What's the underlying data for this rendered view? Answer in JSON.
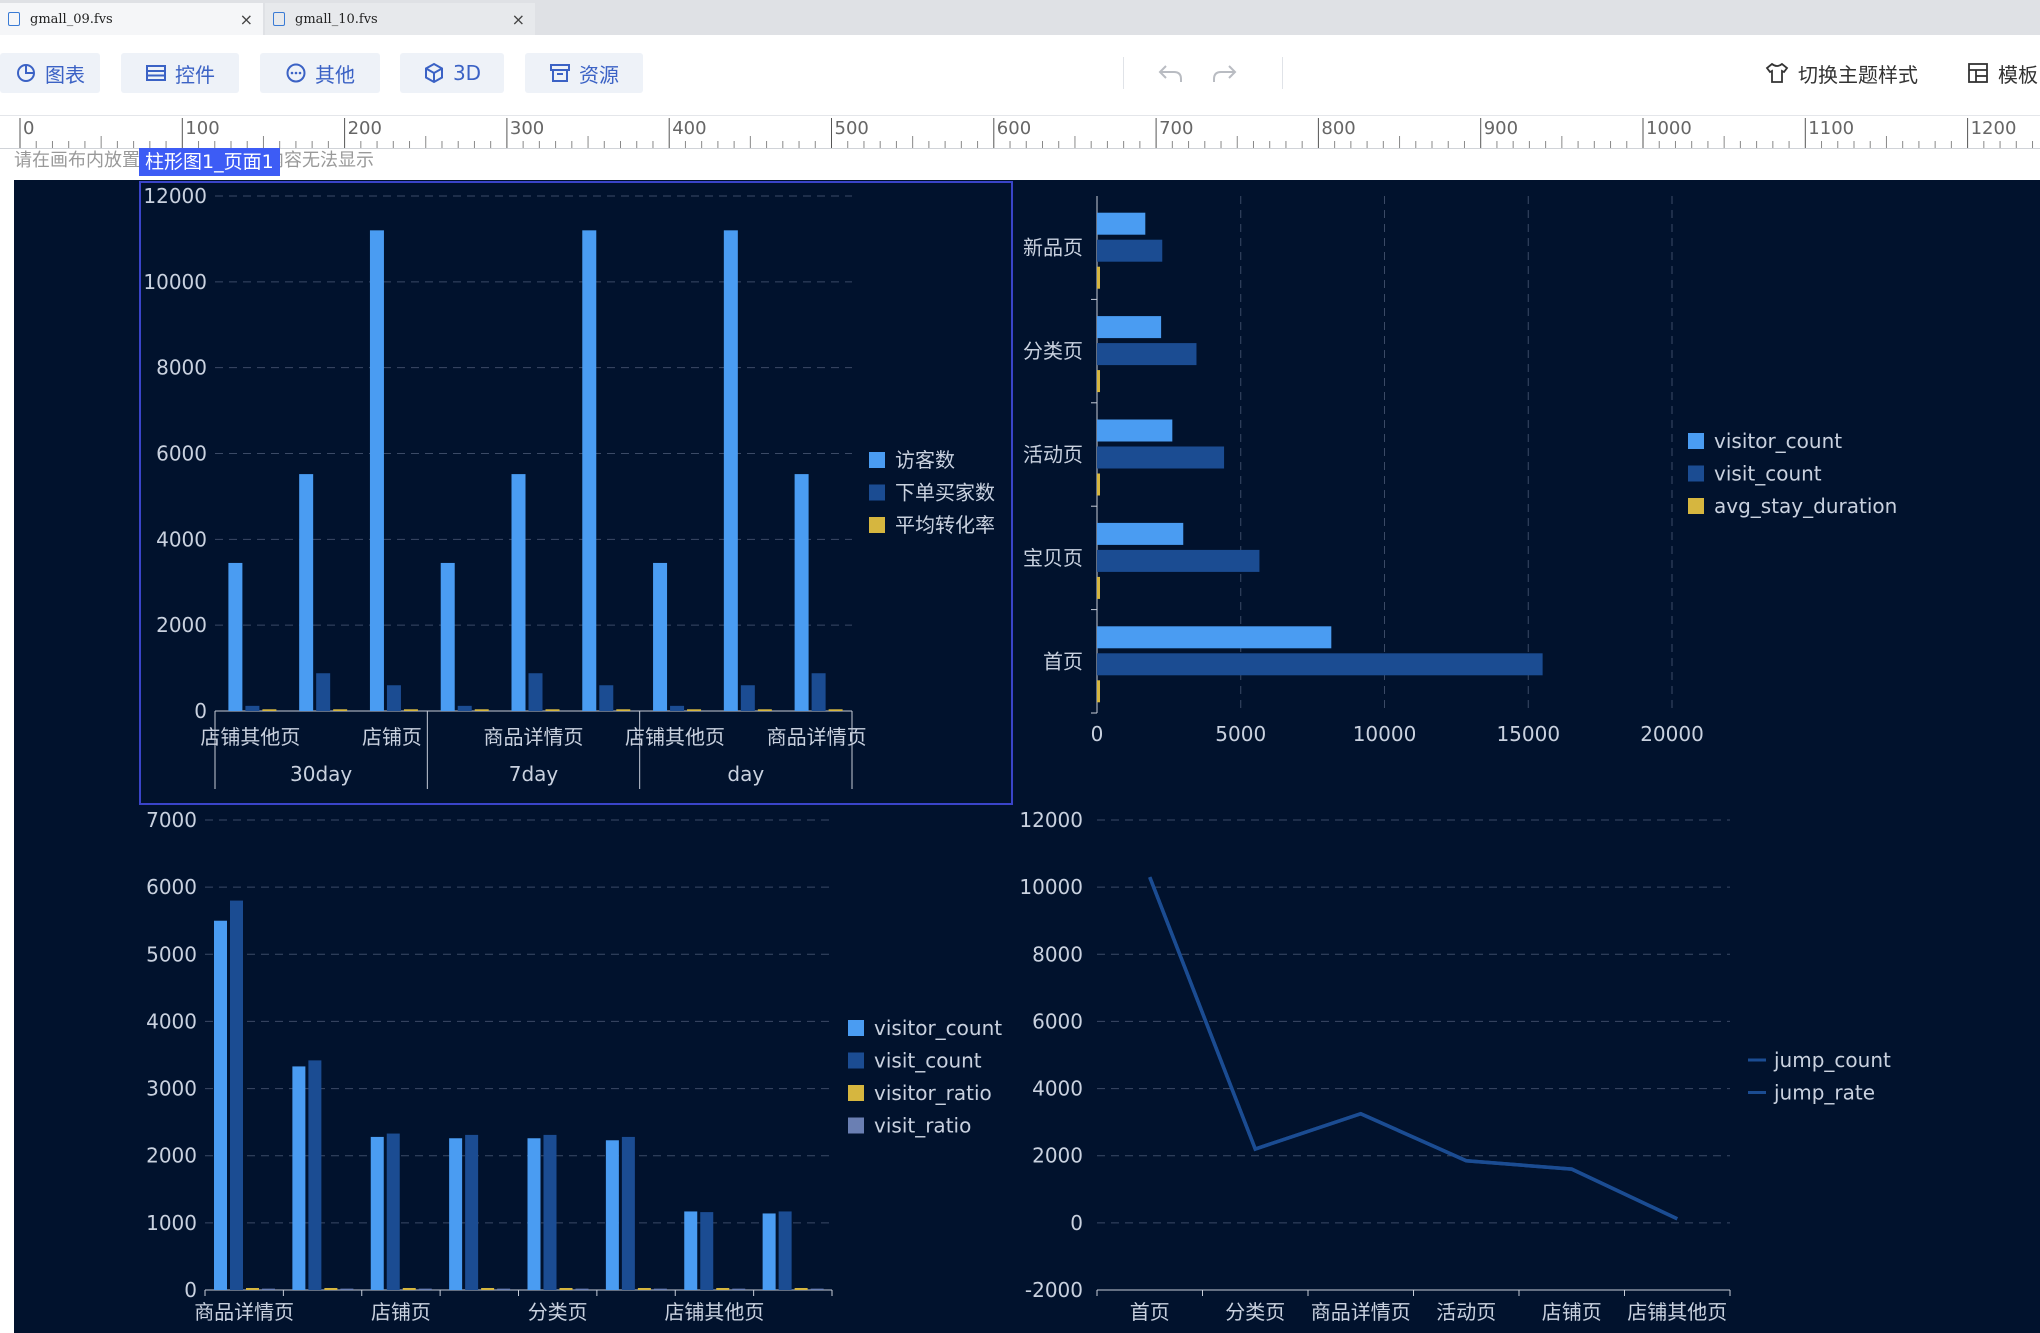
{
  "tabs": [
    {
      "label": "gmall_09.fvs",
      "close": "×"
    },
    {
      "label": "gmall_10.fvs",
      "close": "×"
    }
  ],
  "toolbar": {
    "chart": "图表",
    "widget": "控件",
    "other": "其他",
    "three_d": "3D",
    "resource": "资源",
    "switch_theme": "切换主题样式",
    "template": "模板"
  },
  "ruler": {
    "ticks": [
      "0",
      "100",
      "200",
      "300",
      "400",
      "500",
      "600",
      "700",
      "800",
      "900",
      "1000",
      "1100",
      "1200"
    ]
  },
  "canvas_hint": "请在画布内放置组件，画布外的内容无法显示",
  "selected_label": "柱形图1_页面1",
  "colors": {
    "c1": "#4a9cf2",
    "c2": "#1b4c92",
    "c3": "#d6b63f",
    "c4": "#6a7fb3",
    "line": "#1b4c92"
  },
  "chart_data": [
    {
      "type": "bar",
      "categories": [
        "店铺其他页",
        "商品详情页",
        "店铺页",
        "店铺其他页",
        "商品详情页",
        "店铺页",
        "店铺其他页",
        "店铺页",
        "商品详情页"
      ],
      "x_labels": [
        "店铺其他页",
        "店铺页",
        "商品详情页",
        "店铺其他页",
        "商品详情页"
      ],
      "groups": [
        "30day",
        "7day",
        "day"
      ],
      "series": [
        {
          "name": "访客数",
          "values": [
            3450,
            5520,
            11200,
            3450,
            5520,
            11200,
            3450,
            11200,
            5520
          ]
        },
        {
          "name": "下单买家数",
          "values": [
            120,
            880,
            600,
            120,
            880,
            600,
            120,
            600,
            880
          ]
        },
        {
          "name": "平均转化率",
          "values": [
            40,
            40,
            40,
            40,
            40,
            40,
            40,
            40,
            40
          ]
        }
      ],
      "y_ticks": [
        "0",
        "2000",
        "4000",
        "6000",
        "8000",
        "10000",
        "12000"
      ],
      "ylim": [
        0,
        12000
      ]
    },
    {
      "type": "bar",
      "orientation": "horizontal",
      "categories": [
        "首页",
        "宝贝页",
        "活动页",
        "分类页",
        "新品页"
      ],
      "series": [
        {
          "name": "visitor_count",
          "values": [
            8150,
            3000,
            2620,
            2230,
            1680
          ]
        },
        {
          "name": "visit_count",
          "values": [
            15500,
            5650,
            4420,
            3460,
            2270
          ]
        },
        {
          "name": "avg_stay_duration",
          "values": [
            60,
            60,
            60,
            60,
            60
          ]
        }
      ],
      "x_ticks": [
        "0",
        "5000",
        "10000",
        "15000",
        "20000"
      ],
      "xlim": [
        0,
        20000
      ]
    },
    {
      "type": "bar",
      "categories": [
        "商品详情页",
        "",
        "店铺页",
        "",
        "分类页",
        "",
        "店铺其他页",
        ""
      ],
      "x_labels": [
        "商品详情页",
        "店铺页",
        "分类页",
        "店铺其他页"
      ],
      "series": [
        {
          "name": "visitor_count",
          "values": [
            5500,
            3330,
            2280,
            2260,
            2260,
            2230,
            1170,
            1140
          ]
        },
        {
          "name": "visit_count",
          "values": [
            5800,
            3420,
            2330,
            2310,
            2310,
            2280,
            1160,
            1170
          ]
        },
        {
          "name": "visitor_ratio",
          "values": [
            30,
            30,
            30,
            30,
            30,
            30,
            30,
            30
          ]
        },
        {
          "name": "visit_ratio",
          "values": [
            20,
            20,
            20,
            20,
            20,
            20,
            20,
            20
          ]
        }
      ],
      "y_ticks": [
        "0",
        "1000",
        "2000",
        "3000",
        "4000",
        "5000",
        "6000",
        "7000"
      ],
      "ylim": [
        0,
        7000
      ]
    },
    {
      "type": "line",
      "categories": [
        "首页",
        "分类页",
        "商品详情页",
        "活动页",
        "店铺页",
        "店铺其他页"
      ],
      "series": [
        {
          "name": "jump_count",
          "values": [
            10300,
            2200,
            3250,
            1850,
            1600,
            120
          ]
        },
        {
          "name": "jump_rate",
          "values": [
            10300,
            2200,
            3250,
            1850,
            1600,
            120
          ]
        }
      ],
      "y_ticks": [
        "-2000",
        "0",
        "2000",
        "4000",
        "6000",
        "8000",
        "10000",
        "12000"
      ],
      "ylim": [
        -2000,
        12000
      ]
    }
  ]
}
